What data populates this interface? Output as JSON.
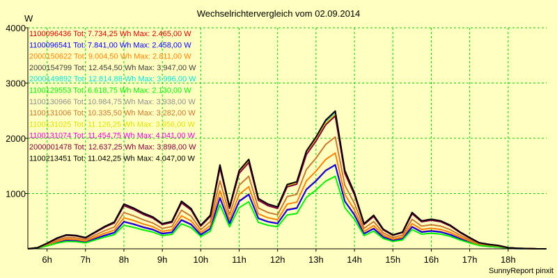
{
  "chart_data": {
    "type": "line",
    "title": "Wechselrichtervergleich vom 02.09.2014",
    "ylabel": "W",
    "xlabel": "",
    "footer": "SunnyReport pinxit",
    "ylim": [
      0,
      4000
    ],
    "xlim": [
      5.5,
      19.0
    ],
    "y_ticks": [
      1000,
      2000,
      3000,
      4000
    ],
    "x_ticks": [
      6,
      7,
      8,
      9,
      10,
      11,
      12,
      13,
      14,
      15,
      16,
      17,
      18
    ],
    "x_tick_labels": [
      "6h",
      "7h",
      "8h",
      "9h",
      "10h",
      "11h",
      "12h",
      "13h",
      "14h",
      "15h",
      "16h",
      "17h",
      "18h"
    ],
    "grid": true,
    "grid_color": "#00cc00",
    "legend_position": "top-left",
    "x": [
      5.5,
      5.75,
      6.0,
      6.25,
      6.5,
      6.75,
      7.0,
      7.25,
      7.5,
      7.75,
      8.0,
      8.25,
      8.5,
      8.75,
      9.0,
      9.25,
      9.5,
      9.75,
      10.0,
      10.25,
      10.5,
      10.75,
      11.0,
      11.25,
      11.5,
      11.75,
      12.0,
      12.25,
      12.5,
      12.75,
      13.0,
      13.25,
      13.5,
      13.75,
      14.0,
      14.25,
      14.5,
      14.75,
      15.0,
      15.25,
      15.5,
      15.75,
      16.0,
      16.25,
      16.5,
      16.75,
      17.0,
      17.25,
      17.5,
      17.75,
      18.0,
      18.25,
      18.5,
      18.75,
      19.0
    ],
    "series": [
      {
        "name": "1100096436 Tot: 7.734,25 Wh Max: 2.465,00 W",
        "color": "#cc0000",
        "scale": 0.617,
        "values": [
          0,
          20,
          100,
          190,
          250,
          240,
          200,
          300,
          400,
          480,
          800,
          730,
          640,
          570,
          450,
          490,
          850,
          720,
          420,
          600,
          1500,
          750,
          1400,
          1600,
          900,
          800,
          750,
          1150,
          1200,
          1750,
          2000,
          2300,
          2465,
          1400,
          1000,
          450,
          600,
          350,
          250,
          300,
          650,
          500,
          530,
          500,
          420,
          300,
          200,
          110,
          80,
          60,
          20,
          10,
          5,
          0,
          0
        ]
      },
      {
        "name": "1100096541 Tot: 7.841,00 Wh Max: 2.458,00 W",
        "color": "#0000ff",
        "scale": 0.617,
        "values": [
          0,
          15,
          100,
          180,
          240,
          230,
          190,
          290,
          390,
          470,
          790,
          720,
          630,
          560,
          440,
          480,
          840,
          710,
          410,
          590,
          1490,
          740,
          1390,
          1590,
          890,
          790,
          740,
          1140,
          1190,
          1740,
          1990,
          2290,
          2458,
          1390,
          990,
          440,
          590,
          340,
          240,
          290,
          640,
          490,
          520,
          490,
          410,
          290,
          190,
          100,
          70,
          50,
          15,
          5,
          0,
          0,
          0
        ]
      },
      {
        "name": "2000150622 Tot: 9.004,50 Wh Max: 2.811,00 W",
        "color": "#ff8000",
        "scale": 0.703,
        "values": [
          0,
          20,
          100,
          190,
          250,
          240,
          200,
          300,
          400,
          480,
          800,
          730,
          640,
          570,
          450,
          490,
          850,
          720,
          420,
          600,
          1500,
          750,
          1400,
          1600,
          900,
          800,
          750,
          1150,
          1200,
          1750,
          2000,
          2300,
          2465,
          1400,
          1000,
          450,
          600,
          350,
          250,
          300,
          650,
          500,
          530,
          500,
          420,
          300,
          200,
          110,
          80,
          60,
          20,
          10,
          5,
          0,
          0
        ]
      },
      {
        "name": "2000154799 Tot: 12.454,50 Wh Max: 3.947,00 W",
        "color": "#404040",
        "scale": 0.987,
        "values": [
          0,
          20,
          100,
          190,
          250,
          240,
          200,
          300,
          400,
          480,
          800,
          730,
          640,
          570,
          450,
          490,
          850,
          720,
          420,
          600,
          1500,
          750,
          1400,
          1600,
          900,
          800,
          750,
          1150,
          1200,
          1750,
          2000,
          2300,
          2465,
          1400,
          1000,
          450,
          600,
          350,
          250,
          300,
          650,
          500,
          530,
          500,
          420,
          300,
          200,
          110,
          80,
          60,
          20,
          10,
          5,
          0,
          0
        ]
      },
      {
        "name": "2000149892 Tot: 12.814,88 Wh Max: 3.996,00 W",
        "color": "#00e0e0",
        "scale": 0.999,
        "values": [
          0,
          20,
          100,
          190,
          250,
          240,
          200,
          300,
          400,
          480,
          800,
          730,
          640,
          570,
          450,
          490,
          850,
          720,
          420,
          600,
          1500,
          750,
          1400,
          1600,
          900,
          800,
          750,
          1150,
          1200,
          1750,
          2000,
          2300,
          2465,
          1400,
          1000,
          450,
          600,
          350,
          250,
          300,
          650,
          500,
          530,
          500,
          420,
          300,
          200,
          110,
          80,
          60,
          20,
          10,
          5,
          0,
          0
        ]
      },
      {
        "name": "1100129553 Tot: 6.618,75 Wh Max: 2.130,00 W",
        "color": "#00ee00",
        "scale": 0.532,
        "values": [
          0,
          20,
          100,
          190,
          250,
          240,
          200,
          300,
          400,
          480,
          800,
          730,
          640,
          570,
          450,
          490,
          850,
          720,
          420,
          600,
          1500,
          750,
          1400,
          1600,
          900,
          800,
          750,
          1150,
          1200,
          1750,
          2000,
          2300,
          2465,
          1400,
          1000,
          450,
          600,
          350,
          250,
          300,
          650,
          500,
          530,
          500,
          420,
          300,
          200,
          110,
          80,
          60,
          20,
          10,
          5,
          0,
          0
        ]
      },
      {
        "name": "1100130966 Tot: 10.984,75 Wh Max: 3.938,00 W",
        "color": "#909090",
        "scale": 0.985,
        "values": [
          0,
          20,
          100,
          190,
          250,
          240,
          200,
          300,
          400,
          480,
          800,
          730,
          640,
          570,
          450,
          490,
          850,
          720,
          420,
          600,
          1500,
          750,
          1400,
          1600,
          900,
          800,
          750,
          1150,
          1200,
          1750,
          2000,
          2300,
          2465,
          1400,
          1000,
          450,
          600,
          350,
          250,
          300,
          650,
          500,
          530,
          500,
          420,
          300,
          200,
          110,
          80,
          60,
          20,
          10,
          5,
          0,
          0
        ]
      },
      {
        "name": "1100131006 Tot: 10.335,50 Wh Max: 3.282,00 W",
        "color": "#c87830",
        "scale": 0.821,
        "values": [
          0,
          20,
          100,
          190,
          250,
          240,
          200,
          300,
          400,
          480,
          800,
          730,
          640,
          570,
          450,
          490,
          850,
          720,
          420,
          600,
          1500,
          750,
          1400,
          1600,
          900,
          800,
          750,
          1150,
          1200,
          1750,
          2000,
          2300,
          2465,
          1400,
          1000,
          450,
          600,
          350,
          250,
          300,
          650,
          500,
          530,
          500,
          420,
          300,
          200,
          110,
          80,
          60,
          20,
          10,
          5,
          0,
          0
        ]
      },
      {
        "name": "1100131025 Tot: 11.126,25 Wh Max: 3.956,00 W",
        "color": "#e0e000",
        "scale": 0.989,
        "values": [
          0,
          20,
          100,
          190,
          250,
          240,
          200,
          300,
          400,
          480,
          800,
          730,
          640,
          570,
          450,
          490,
          850,
          720,
          420,
          600,
          1500,
          750,
          1400,
          1600,
          900,
          800,
          750,
          1150,
          1200,
          1750,
          2000,
          2300,
          2465,
          1400,
          1000,
          450,
          600,
          350,
          250,
          300,
          650,
          500,
          530,
          500,
          420,
          300,
          200,
          110,
          80,
          60,
          20,
          10,
          5,
          0,
          0
        ]
      },
      {
        "name": "1100131074 Tot: 11.454,75 Wh Max: 4.041,00 W",
        "color": "#e000e0",
        "scale": 1.01,
        "values": [
          0,
          20,
          100,
          190,
          250,
          240,
          200,
          300,
          400,
          480,
          800,
          730,
          640,
          570,
          450,
          490,
          850,
          720,
          420,
          600,
          1500,
          750,
          1400,
          1600,
          900,
          800,
          750,
          1150,
          1200,
          1750,
          2000,
          2300,
          2465,
          1400,
          1000,
          450,
          600,
          350,
          250,
          300,
          650,
          500,
          530,
          500,
          420,
          300,
          200,
          110,
          80,
          60,
          20,
          10,
          5,
          0,
          0
        ]
      },
      {
        "name": "2000001478 Tot: 12.637,25 Wh Max: 3.898,00 W",
        "color": "#800040",
        "scale": 0.975,
        "values": [
          0,
          20,
          100,
          190,
          250,
          240,
          200,
          300,
          400,
          480,
          800,
          730,
          640,
          570,
          450,
          490,
          850,
          720,
          420,
          600,
          1500,
          750,
          1400,
          1600,
          900,
          800,
          750,
          1150,
          1200,
          1750,
          2000,
          2300,
          2465,
          1400,
          1000,
          450,
          600,
          350,
          250,
          300,
          650,
          500,
          530,
          500,
          420,
          300,
          200,
          110,
          80,
          60,
          20,
          10,
          5,
          0,
          0
        ]
      },
      {
        "name": "1100213451 Tot: 11.042,25 Wh Max: 4.047,00 W",
        "color": "#000000",
        "scale": 1.012,
        "values": [
          0,
          20,
          100,
          190,
          250,
          240,
          200,
          300,
          400,
          480,
          800,
          730,
          640,
          570,
          450,
          490,
          850,
          720,
          420,
          600,
          1500,
          750,
          1400,
          1600,
          900,
          800,
          750,
          1150,
          1200,
          1750,
          2000,
          2300,
          2465,
          1400,
          1000,
          450,
          600,
          350,
          250,
          300,
          650,
          500,
          530,
          500,
          420,
          300,
          200,
          110,
          80,
          60,
          20,
          10,
          5,
          0,
          0
        ]
      }
    ]
  }
}
